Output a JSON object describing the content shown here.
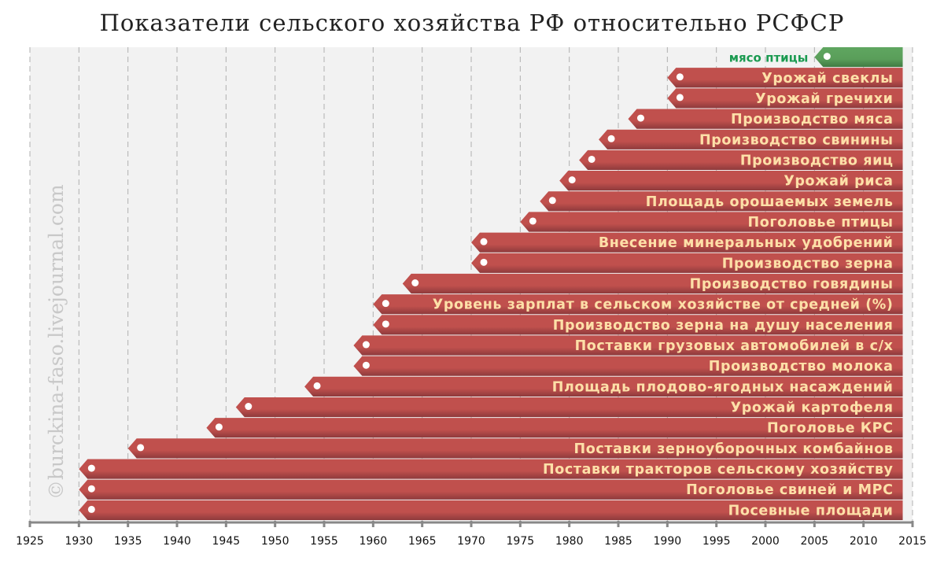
{
  "chart_data": {
    "type": "bar",
    "title": "Показатели сельского хозяйства РФ относительно РСФСР",
    "watermark": "©burckina-faso.livejournal.com",
    "xlim": [
      1925,
      2015
    ],
    "xticks": [
      1925,
      1930,
      1935,
      1940,
      1945,
      1950,
      1955,
      1960,
      1965,
      1970,
      1975,
      1980,
      1985,
      1990,
      1995,
      2000,
      2005,
      2010,
      2015
    ],
    "grid": true,
    "end_year": 2014,
    "colors": {
      "bar": "#c0504d",
      "bar_highlight": "#5a9e5a",
      "label": "#fde0a8",
      "highlight_label": "#1a9a50",
      "background": "#f2f2f2"
    },
    "series": [
      {
        "label": "мясо птицы",
        "start": 2005,
        "highlight": true
      },
      {
        "label": "Урожай свеклы",
        "start": 1990
      },
      {
        "label": "Урожай гречихи",
        "start": 1990
      },
      {
        "label": "Производство мяса",
        "start": 1986
      },
      {
        "label": "Производство свинины",
        "start": 1983
      },
      {
        "label": "Производство яиц",
        "start": 1981
      },
      {
        "label": "Урожай риса",
        "start": 1979
      },
      {
        "label": "Площадь орошаемых земель",
        "start": 1977
      },
      {
        "label": "Поголовье птицы",
        "start": 1975
      },
      {
        "label": "Внесение минеральных удобрений",
        "start": 1970
      },
      {
        "label": "Производство зерна",
        "start": 1970
      },
      {
        "label": "Производство говядины",
        "start": 1963
      },
      {
        "label": "Уровень зарплат в сельском хозяйстве от средней (%)",
        "start": 1960
      },
      {
        "label": "Производство зерна на душу населения",
        "start": 1960
      },
      {
        "label": "Поставки грузовых автомобилей в с/х",
        "start": 1958
      },
      {
        "label": "Производство молока",
        "start": 1958
      },
      {
        "label": "Площадь плодово-ягодных насаждений",
        "start": 1953
      },
      {
        "label": "Урожай картофеля",
        "start": 1946
      },
      {
        "label": "Поголовье КРС",
        "start": 1943
      },
      {
        "label": "Поставки зерноуборочных комбайнов",
        "start": 1935
      },
      {
        "label": "Поставки тракторов сельскому хозяйству",
        "start": 1930
      },
      {
        "label": "Поголовье свиней и МРС",
        "start": 1930
      },
      {
        "label": "Посевные площади",
        "start": 1930
      }
    ]
  }
}
